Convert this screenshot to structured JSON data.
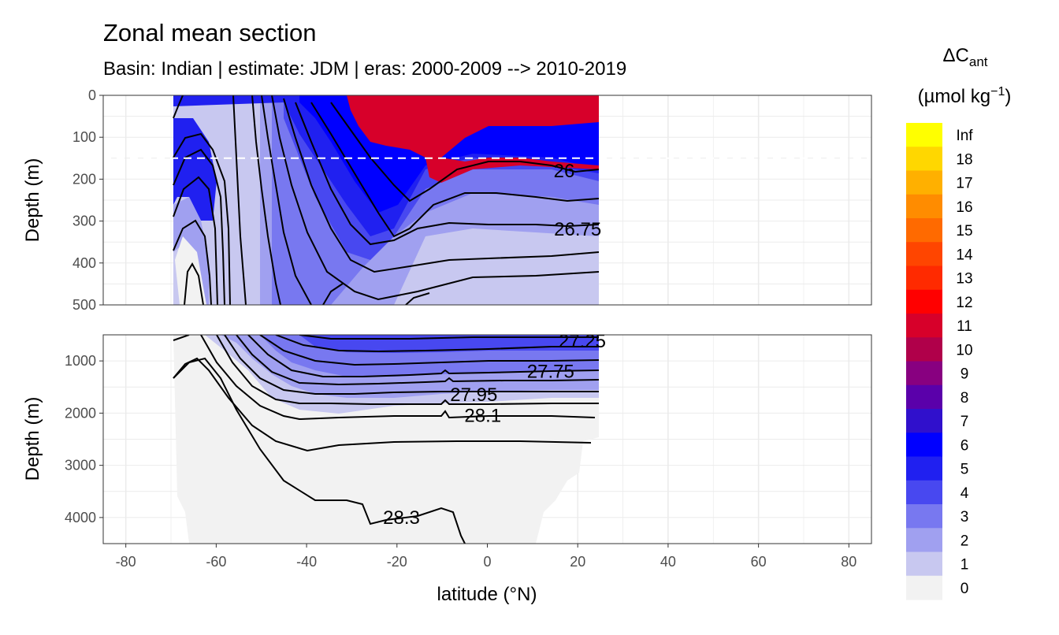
{
  "title": "Zonal mean section",
  "subtitle": "Basin: Indian | estimate: JDM  | eras: 2000-2009 --> 2010-2019",
  "chart_data": {
    "type": "heatmap",
    "title": "Zonal mean section",
    "subtitle": "Basin: Indian | estimate: JDM  | eras: 2000-2009 --> 2010-2019",
    "xlabel": "latitude (°N)",
    "xlim": [
      -85,
      85
    ],
    "x_ticks": [
      -80,
      -60,
      -40,
      -20,
      0,
      20,
      40,
      60,
      80
    ],
    "data_lat_range": [
      -69.5,
      24.5
    ],
    "reference_depth_line": 150,
    "panels": [
      {
        "name": "upper",
        "ylabel": "Depth (m)",
        "ylim": [
          0,
          500
        ],
        "y_ticks": [
          0,
          100,
          200,
          300,
          400,
          500
        ]
      },
      {
        "name": "lower",
        "ylabel": "Depth (m)",
        "ylim": [
          500,
          4500
        ],
        "y_ticks": [
          1000,
          2000,
          3000,
          4000
        ]
      }
    ],
    "contour_labels": [
      {
        "label": "26",
        "lat": 17,
        "depth": 180,
        "panel": "upper"
      },
      {
        "label": "26.75",
        "lat": 20,
        "depth": 320,
        "panel": "upper"
      },
      {
        "label": "27.25",
        "lat": 21,
        "depth": 620,
        "panel": "lower"
      },
      {
        "label": "27.75",
        "lat": 14,
        "depth": 1200,
        "panel": "lower"
      },
      {
        "label": "27.95",
        "lat": -3,
        "depth": 1650,
        "panel": "lower"
      },
      {
        "label": "28.1",
        "lat": -1,
        "depth": 2050,
        "panel": "lower"
      },
      {
        "label": "28.3",
        "lat": -19,
        "depth": 4000,
        "panel": "lower"
      }
    ],
    "legend": {
      "title": "ΔC",
      "title_sub": "ant",
      "unit": "(µmol kg",
      "unit_sup": "−1",
      "unit_end": ")",
      "position": "right",
      "levels": [
        "Inf",
        "18",
        "17",
        "16",
        "15",
        "14",
        "13",
        "12",
        "11",
        "10",
        "9",
        "8",
        "7",
        "6",
        "5",
        "4",
        "3",
        "2",
        "1",
        "0"
      ],
      "colors": [
        "#ffff00",
        "#ffd700",
        "#ffb000",
        "#ff8c00",
        "#ff6a00",
        "#ff4500",
        "#ff2a00",
        "#ff0000",
        "#d7002a",
        "#b0004a",
        "#880080",
        "#5a00aa",
        "#3010cc",
        "#0000ff",
        "#2020f0",
        "#4848f0",
        "#7878f0",
        "#a0a0f0",
        "#c8c8f0",
        "#f2f2f2"
      ]
    }
  }
}
